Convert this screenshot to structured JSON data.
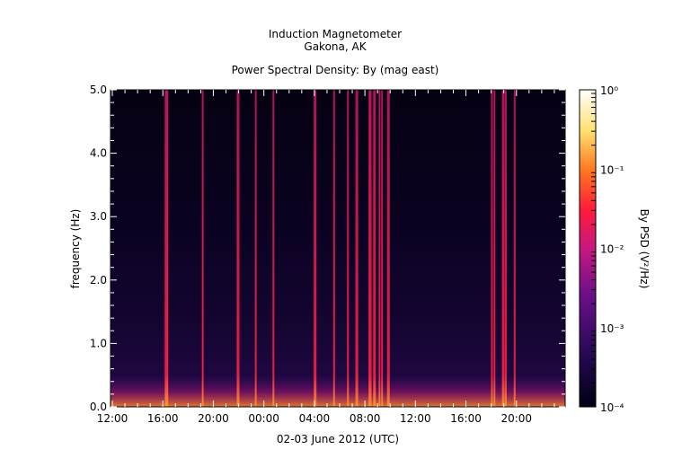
{
  "title_lines": [
    "Induction Magnetometer",
    "Gakona, AK"
  ],
  "subtitle": "Power Spectral Density: By (mag east)",
  "chart_data": {
    "type": "heatmap",
    "title": "Power Spectral Density: By (mag east)",
    "xlabel": "02-03 June 2012 (UTC)",
    "ylabel": "frequency (Hz)",
    "ylim": [
      0,
      5
    ],
    "x_ticks": [
      "12:00",
      "16:00",
      "20:00",
      "00:00",
      "04:00",
      "08:00",
      "12:00",
      "16:00",
      "20:00"
    ],
    "y_ticks": [
      "0.0",
      "1.0",
      "2.0",
      "3.0",
      "4.0",
      "5.0"
    ],
    "colorbar": {
      "label": "By PSD (V²/Hz)",
      "scale": "log",
      "range": [
        0.0001,
        1
      ],
      "ticks": [
        "10⁻⁴",
        "10⁻³",
        "10⁻²",
        "10⁻¹",
        "10⁰"
      ]
    },
    "broadband_bursts_hours_from_start": [
      4.4,
      4.5,
      7.3,
      10.1,
      11.5,
      12.9,
      16.2,
      17.7,
      18.8,
      19.5,
      20.5,
      20.6,
      20.9,
      21.3,
      21.5,
      22.0,
      30.2,
      30.4,
      31.1,
      31.3,
      32.0
    ]
  }
}
